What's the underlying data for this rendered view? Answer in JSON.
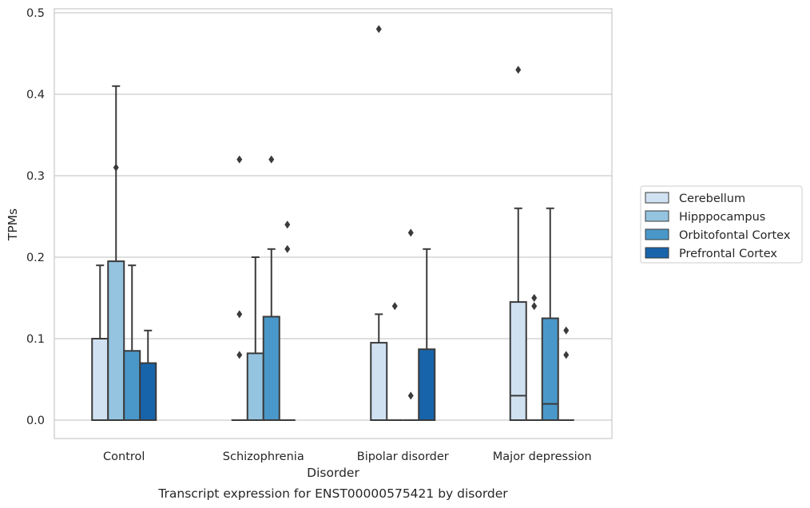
{
  "chart_data": {
    "type": "box",
    "title": "",
    "caption": "Transcript expression for ENST00000575421 by disorder",
    "xlabel": "Disorder",
    "ylabel": "TPMs",
    "ylim": [
      -0.023,
      0.505
    ],
    "yticks": [
      "0.0",
      "0.1",
      "0.2",
      "0.3",
      "0.4",
      "0.5"
    ],
    "categories": [
      "Control",
      "Schizophrenia",
      "Bipolar disorder",
      "Major depression"
    ],
    "grid": "horizontal",
    "legend_position": "right",
    "series": [
      {
        "name": "Cerebellum",
        "color": "#d0e1f2",
        "boxes": [
          {
            "q1": 0.0,
            "median": 0.0,
            "q3": 0.1,
            "whisker_low": 0.0,
            "whisker_high": 0.19,
            "outliers": []
          },
          {
            "q1": 0.0,
            "median": 0.0,
            "q3": 0.0,
            "whisker_low": 0.0,
            "whisker_high": 0.0,
            "outliers": [
              0.32,
              0.13,
              0.08
            ]
          },
          {
            "q1": 0.0,
            "median": 0.0,
            "q3": 0.095,
            "whisker_low": 0.0,
            "whisker_high": 0.13,
            "outliers": [
              0.48
            ]
          },
          {
            "q1": 0.0,
            "median": 0.03,
            "q3": 0.145,
            "whisker_low": 0.0,
            "whisker_high": 0.26,
            "outliers": [
              0.43
            ]
          }
        ]
      },
      {
        "name": "Hipppocampus",
        "color": "#94c4df",
        "boxes": [
          {
            "q1": 0.0,
            "median": 0.0,
            "q3": 0.195,
            "whisker_low": 0.0,
            "whisker_high": 0.41,
            "outliers": [
              0.31
            ]
          },
          {
            "q1": 0.0,
            "median": 0.0,
            "q3": 0.082,
            "whisker_low": 0.0,
            "whisker_high": 0.2,
            "outliers": []
          },
          {
            "q1": 0.0,
            "median": 0.0,
            "q3": 0.0,
            "whisker_low": 0.0,
            "whisker_high": 0.0,
            "outliers": [
              0.14
            ]
          },
          {
            "q1": 0.0,
            "median": 0.0,
            "q3": 0.0,
            "whisker_low": 0.0,
            "whisker_high": 0.0,
            "outliers": [
              0.15,
              0.14
            ]
          }
        ]
      },
      {
        "name": "Orbitofontal Cortex",
        "color": "#4a98c9",
        "boxes": [
          {
            "q1": 0.0,
            "median": 0.0,
            "q3": 0.085,
            "whisker_low": 0.0,
            "whisker_high": 0.19,
            "outliers": []
          },
          {
            "q1": 0.0,
            "median": 0.0,
            "q3": 0.127,
            "whisker_low": 0.0,
            "whisker_high": 0.21,
            "outliers": [
              0.32
            ]
          },
          {
            "q1": 0.0,
            "median": 0.0,
            "q3": 0.0,
            "whisker_low": 0.0,
            "whisker_high": 0.0,
            "outliers": [
              0.23,
              0.03
            ]
          },
          {
            "q1": 0.0,
            "median": 0.02,
            "q3": 0.125,
            "whisker_low": 0.0,
            "whisker_high": 0.26,
            "outliers": []
          }
        ]
      },
      {
        "name": "Prefrontal Cortex",
        "color": "#1764ab",
        "boxes": [
          {
            "q1": 0.0,
            "median": 0.0,
            "q3": 0.07,
            "whisker_low": 0.0,
            "whisker_high": 0.11,
            "outliers": []
          },
          {
            "q1": 0.0,
            "median": 0.0,
            "q3": 0.0,
            "whisker_low": 0.0,
            "whisker_high": 0.0,
            "outliers": [
              0.24,
              0.21
            ]
          },
          {
            "q1": 0.0,
            "median": 0.0,
            "q3": 0.087,
            "whisker_low": 0.0,
            "whisker_high": 0.21,
            "outliers": []
          },
          {
            "q1": 0.0,
            "median": 0.0,
            "q3": 0.0,
            "whisker_low": 0.0,
            "whisker_high": 0.0,
            "outliers": [
              0.11,
              0.08
            ]
          }
        ]
      }
    ]
  }
}
